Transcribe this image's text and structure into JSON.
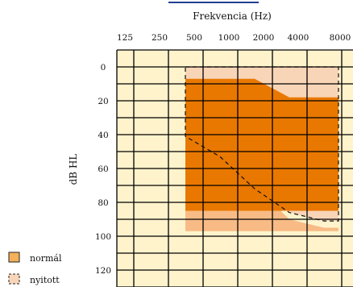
{
  "chart_data": {
    "type": "area",
    "xlabel": "Frekvencia (Hz)",
    "ylabel": "dB HL",
    "x_ticks": [
      "125",
      "250",
      "500",
      "1000",
      "2000",
      "4000",
      "8000"
    ],
    "y_ticks": [
      0,
      20,
      40,
      60,
      80,
      100,
      120
    ],
    "ylim": [
      -10,
      130
    ],
    "y_inverted": true,
    "grid": true,
    "legend_position": "bottom-left",
    "colors": {
      "background": "#fff3cc",
      "grid": "#000000",
      "normal_fill": "#e97800",
      "open_fill": "#f8bb85",
      "open_light_fill": "#f9d5b8",
      "top_accent": "#1f3f8f"
    },
    "series": [
      {
        "name": "normál",
        "style": "solid",
        "x": [
          "250",
          "1000",
          "2000",
          "8000",
          "8000",
          "250"
        ],
        "y": [
          7,
          7,
          18,
          18,
          85,
          85
        ]
      },
      {
        "name": "nyitott",
        "style": "dashed",
        "x": [
          "250",
          "8000",
          "8000",
          "4000",
          "2000",
          "1000",
          "500",
          "250"
        ],
        "y": [
          0,
          0,
          91,
          91,
          86,
          72,
          53,
          41
        ]
      }
    ],
    "extra_fill_region": {
      "x": [
        "250",
        "500",
        "1000",
        "2000",
        "4000",
        "8000",
        "8000",
        "250"
      ],
      "y": [
        40,
        52,
        70,
        90,
        95,
        95,
        97,
        97
      ]
    }
  }
}
